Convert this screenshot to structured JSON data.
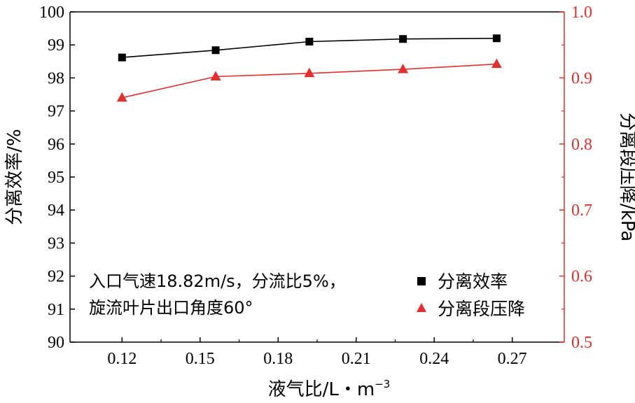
{
  "chart_data": {
    "type": "line",
    "x": [
      0.12,
      0.156,
      0.192,
      0.228,
      0.264
    ],
    "series": [
      {
        "name": "分离效率",
        "axis": "left",
        "marker": "square",
        "color": "#000000",
        "values": [
          98.62,
          98.84,
          99.1,
          99.18,
          99.2
        ]
      },
      {
        "name": "分离段压降",
        "axis": "right",
        "marker": "triangle",
        "color": "#e03030",
        "values": [
          0.87,
          0.902,
          0.907,
          0.913,
          0.921
        ]
      }
    ],
    "xlabel": "液气比/L・m",
    "xlabel_sup": "−3",
    "ylabel": "分离效率/%",
    "y2label": "分离段压降/kPa",
    "xlim": [
      0.1,
      0.29
    ],
    "ylim": [
      90,
      100
    ],
    "y2lim": [
      0.5,
      1.0
    ],
    "xticks": [
      "0.12",
      "0.15",
      "0.18",
      "0.21",
      "0.24",
      "0.27"
    ],
    "yticks": [
      "90",
      "91",
      "92",
      "93",
      "94",
      "95",
      "96",
      "97",
      "98",
      "99",
      "100"
    ],
    "y2ticks": [
      "0.5",
      "0.6",
      "0.7",
      "0.8",
      "0.9",
      "1.0"
    ],
    "annotation": [
      "入口气速18.82m/s，分流比5%，",
      "旋流叶片出口角度60°"
    ],
    "legend_position": "bottom-right",
    "grid": false,
    "axis_color_left": "#000000",
    "axis_color_right": "#e03030"
  }
}
